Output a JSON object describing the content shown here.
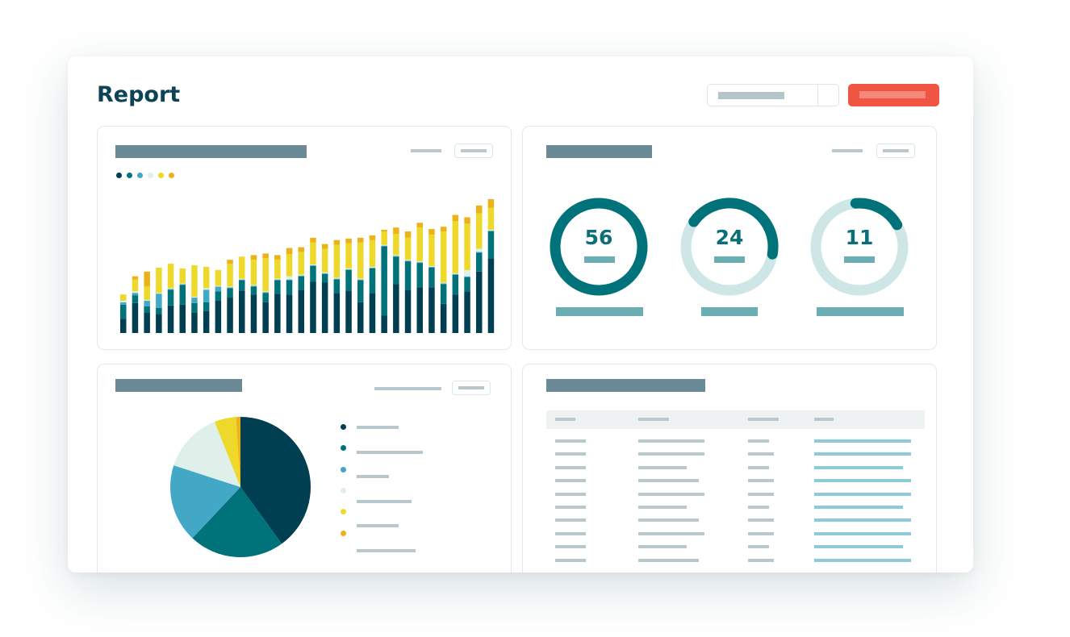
{
  "header": {
    "title": "Report",
    "colors": {
      "accent_button": "#f05543",
      "title": "#0c4456"
    }
  },
  "palette": [
    "#003f52",
    "#00727a",
    "#42a8c6",
    "#dff0ea",
    "#eed92a",
    "#ebb21a"
  ],
  "chart_data": [
    {
      "type": "bar",
      "stacked": true,
      "legend_placement": "top-left",
      "grid": false,
      "series": [
        {
          "color": "#003f52",
          "values": [
            18,
            38,
            26,
            24,
            35,
            36,
            26,
            28,
            41,
            45,
            54,
            49,
            39,
            50,
            49,
            55,
            65,
            64,
            51,
            54,
            39,
            51,
            22,
            62,
            55,
            58,
            58,
            37,
            49,
            53,
            78,
            95
          ]
        },
        {
          "color": "#00727a",
          "values": [
            18,
            10,
            8,
            8,
            20,
            25,
            12,
            11,
            12,
            12,
            13,
            10,
            12,
            17,
            18,
            17,
            20,
            11,
            17,
            26,
            28,
            31,
            88,
            35,
            36,
            31,
            25,
            25,
            25,
            18,
            24,
            34
          ]
        },
        {
          "color": "#42a8c6",
          "values": [
            3,
            3,
            7,
            18,
            1,
            1,
            7,
            16,
            6,
            1,
            1,
            1,
            1,
            1,
            1,
            1,
            1,
            1,
            1,
            1,
            1,
            1,
            1,
            1,
            1,
            1,
            1,
            1,
            1,
            1,
            1,
            1
          ]
        },
        {
          "color": "#dff0ea",
          "values": [
            2,
            2,
            1,
            1,
            1,
            1,
            1,
            2,
            1,
            1,
            1,
            1,
            1,
            1,
            4,
            1,
            1,
            1,
            1,
            1,
            1,
            1,
            1,
            1,
            1,
            1,
            1,
            1,
            1,
            8,
            4,
            1
          ]
        },
        {
          "color": "#eed92a",
          "values": [
            8,
            15,
            17,
            32,
            31,
            19,
            40,
            27,
            20,
            29,
            28,
            32,
            42,
            24,
            28,
            29,
            28,
            30,
            42,
            32,
            46,
            34,
            17,
            27,
            28,
            43,
            40,
            65,
            66,
            59,
            45,
            28
          ]
        },
        {
          "color": "#ebb21a",
          "values": [
            0,
            4,
            19,
            0,
            0,
            0,
            0,
            0,
            0,
            5,
            0,
            6,
            6,
            6,
            8,
            6,
            6,
            6,
            6,
            6,
            6,
            6,
            2,
            8,
            8,
            6,
            7,
            6,
            8,
            8,
            10,
            11
          ]
        }
      ]
    },
    {
      "type": "donut",
      "items": [
        {
          "value": "56",
          "fraction": 1.0,
          "start_deg": 0
        },
        {
          "value": "24",
          "fraction": 0.43,
          "start_deg": -55
        },
        {
          "value": "11",
          "fraction": 0.18,
          "start_deg": -5
        }
      ],
      "colors": {
        "arc": "#00727a",
        "track": "#cfe6e6"
      }
    },
    {
      "type": "pie",
      "values": [
        40,
        22,
        18,
        14,
        5,
        1
      ],
      "colors": [
        "#003f52",
        "#00727a",
        "#42a8c6",
        "#dff0ea",
        "#eed92a",
        "#ebb21a"
      ],
      "legend_placement": "right"
    }
  ]
}
